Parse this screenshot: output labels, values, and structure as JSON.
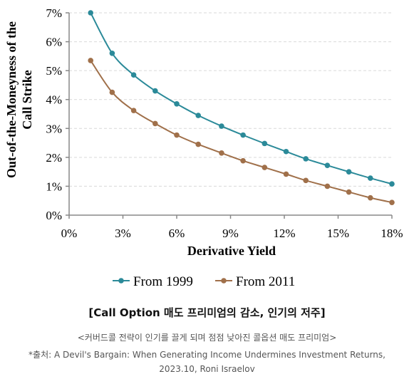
{
  "chart_data": {
    "type": "line",
    "xlabel": "Derivative Yield",
    "ylabel": [
      "Out-of-the-Moneyness of the",
      "Call Strike"
    ],
    "xlim": [
      0,
      18
    ],
    "ylim": [
      0,
      7
    ],
    "x_ticks": [
      "0%",
      "3%",
      "6%",
      "9%",
      "12%",
      "15%",
      "18%"
    ],
    "y_ticks": [
      "0%",
      "1%",
      "2%",
      "3%",
      "4%",
      "5%",
      "6%",
      "7%"
    ],
    "grid": "horizontal dashed",
    "legend_position": "bottom",
    "series": [
      {
        "name": "From 1999",
        "color": "#2b8a99",
        "x": [
          1.2,
          2.4,
          3.6,
          4.8,
          6.0,
          7.2,
          8.5,
          9.7,
          10.9,
          12.1,
          13.2,
          14.4,
          15.6,
          16.8,
          18.0
        ],
        "y": [
          7.0,
          5.6,
          4.85,
          4.3,
          3.85,
          3.45,
          3.08,
          2.77,
          2.48,
          2.2,
          1.95,
          1.72,
          1.5,
          1.28,
          1.08
        ]
      },
      {
        "name": "From 2011",
        "color": "#a0704a",
        "x": [
          1.2,
          2.4,
          3.6,
          4.8,
          6.0,
          7.2,
          8.5,
          9.7,
          10.9,
          12.1,
          13.2,
          14.4,
          15.6,
          16.8,
          18.0
        ],
        "y": [
          5.35,
          4.25,
          3.62,
          3.17,
          2.77,
          2.45,
          2.15,
          1.88,
          1.65,
          1.42,
          1.2,
          1.0,
          0.8,
          0.6,
          0.44
        ]
      }
    ]
  },
  "caption": {
    "title": "[Call Option 매도 프리미엄의 감소, 인기의 저주]",
    "subtitle": "<커버드콜 전략이 인기를 끌게 되며 점점 낮아진 콜옵션 매도 프리미엄>",
    "source_line1": "*출처: A Devil's Bargain: When Generating Income Undermines Investment Returns,",
    "source_line2": "2023.10, Roni Israelov"
  }
}
